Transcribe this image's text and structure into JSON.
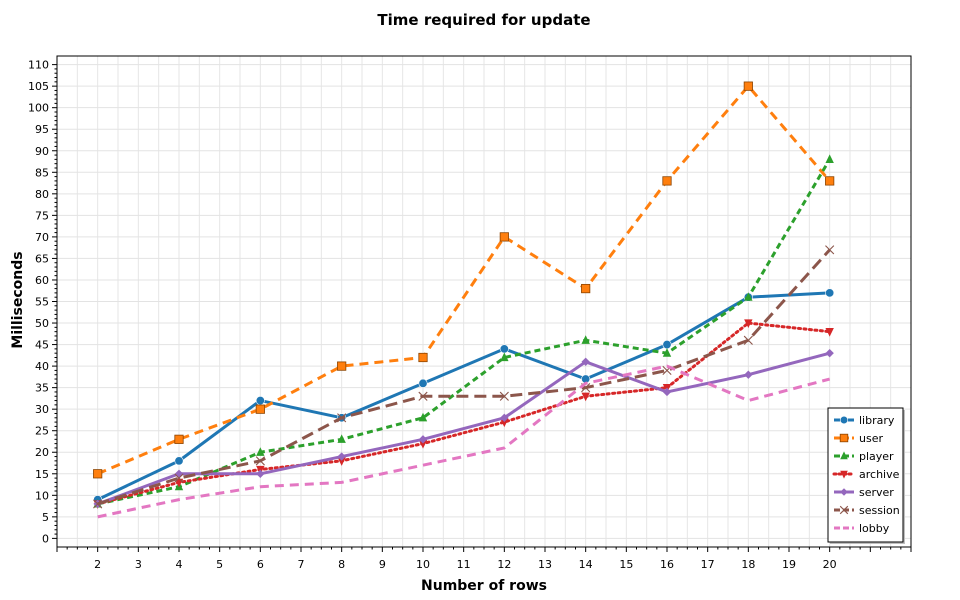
{
  "chart_data": {
    "type": "line",
    "title": "Time required for update",
    "xlabel": "Number of rows",
    "ylabel": "Milliseconds",
    "x": [
      2,
      4,
      6,
      8,
      10,
      12,
      14,
      16,
      18,
      20
    ],
    "xlim": [
      1,
      22
    ],
    "ylim": [
      -2,
      112
    ],
    "xticks": [
      2,
      3,
      4,
      5,
      6,
      7,
      8,
      9,
      10,
      11,
      12,
      13,
      14,
      15,
      16,
      17,
      18,
      19,
      20
    ],
    "yticks": [
      0,
      5,
      10,
      15,
      20,
      25,
      30,
      35,
      40,
      45,
      50,
      55,
      60,
      65,
      70,
      75,
      80,
      85,
      90,
      95,
      100,
      105,
      110
    ],
    "grid": true,
    "legend_position": "bottom-right",
    "series": [
      {
        "name": "library",
        "color": "#1f77b4",
        "dash": "solid",
        "marker": "circle",
        "values": [
          9,
          18,
          32,
          28,
          36,
          44,
          37,
          45,
          56,
          57
        ]
      },
      {
        "name": "user",
        "color": "#ff7f0e",
        "dash": "dashed",
        "marker": "square",
        "values": [
          15,
          23,
          30,
          40,
          42,
          70,
          58,
          83,
          105,
          83
        ]
      },
      {
        "name": "player",
        "color": "#2ca02c",
        "dash": "short-dashed",
        "marker": "triangle-up",
        "values": [
          8,
          12,
          20,
          23,
          28,
          42,
          46,
          43,
          56,
          88
        ]
      },
      {
        "name": "archive",
        "color": "#d62728",
        "dash": "dotted",
        "marker": "triangle-down",
        "values": [
          8,
          13,
          16,
          18,
          22,
          27,
          33,
          35,
          50,
          48
        ]
      },
      {
        "name": "server",
        "color": "#9467bd",
        "dash": "solid",
        "marker": "diamond",
        "values": [
          8,
          15,
          15,
          19,
          23,
          28,
          41,
          34,
          38,
          43
        ]
      },
      {
        "name": "session",
        "color": "#8c564b",
        "dash": "long-dashed",
        "marker": "x",
        "values": [
          8,
          14,
          18,
          28,
          33,
          33,
          35,
          39,
          46,
          67
        ]
      },
      {
        "name": "lobby",
        "color": "#e377c2",
        "dash": "dashed",
        "marker": "none",
        "values": [
          5,
          9,
          12,
          13,
          17,
          21,
          36,
          40,
          32,
          37
        ]
      }
    ]
  }
}
